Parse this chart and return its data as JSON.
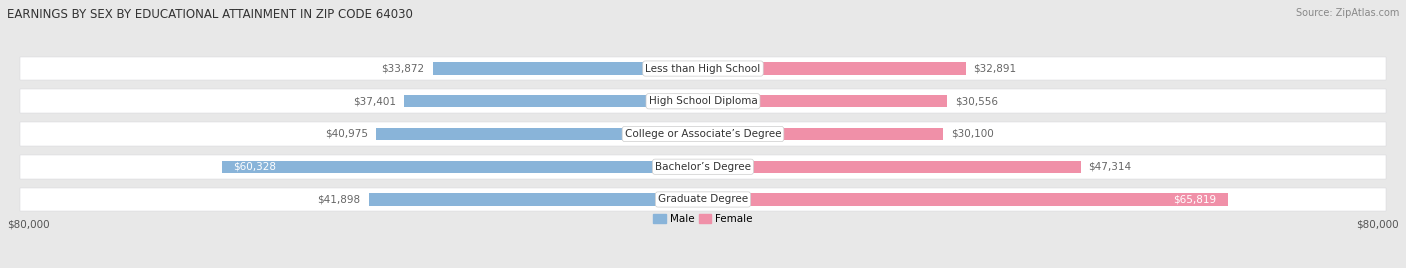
{
  "title": "EARNINGS BY SEX BY EDUCATIONAL ATTAINMENT IN ZIP CODE 64030",
  "source": "Source: ZipAtlas.com",
  "categories": [
    "Less than High School",
    "High School Diploma",
    "College or Associate’s Degree",
    "Bachelor’s Degree",
    "Graduate Degree"
  ],
  "male_values": [
    33872,
    37401,
    40975,
    60328,
    41898
  ],
  "female_values": [
    32891,
    30556,
    30100,
    47314,
    65819
  ],
  "male_color": "#89b4d9",
  "female_color": "#f090a8",
  "male_color_strong": "#7bafd4",
  "female_color_strong": "#f06090",
  "bg_color": "#e8e8e8",
  "row_bg_color": "#f5f5f5",
  "row_bg_color2": "#e0e0e8",
  "max_value": 80000,
  "xlabel_left": "$80,000",
  "xlabel_right": "$80,000",
  "legend_male": "Male",
  "legend_female": "Female",
  "title_fontsize": 8.5,
  "source_fontsize": 7.0,
  "label_fontsize": 7.5,
  "category_fontsize": 7.5,
  "axis_label_fontsize": 7.5,
  "legend_fontsize": 7.5
}
